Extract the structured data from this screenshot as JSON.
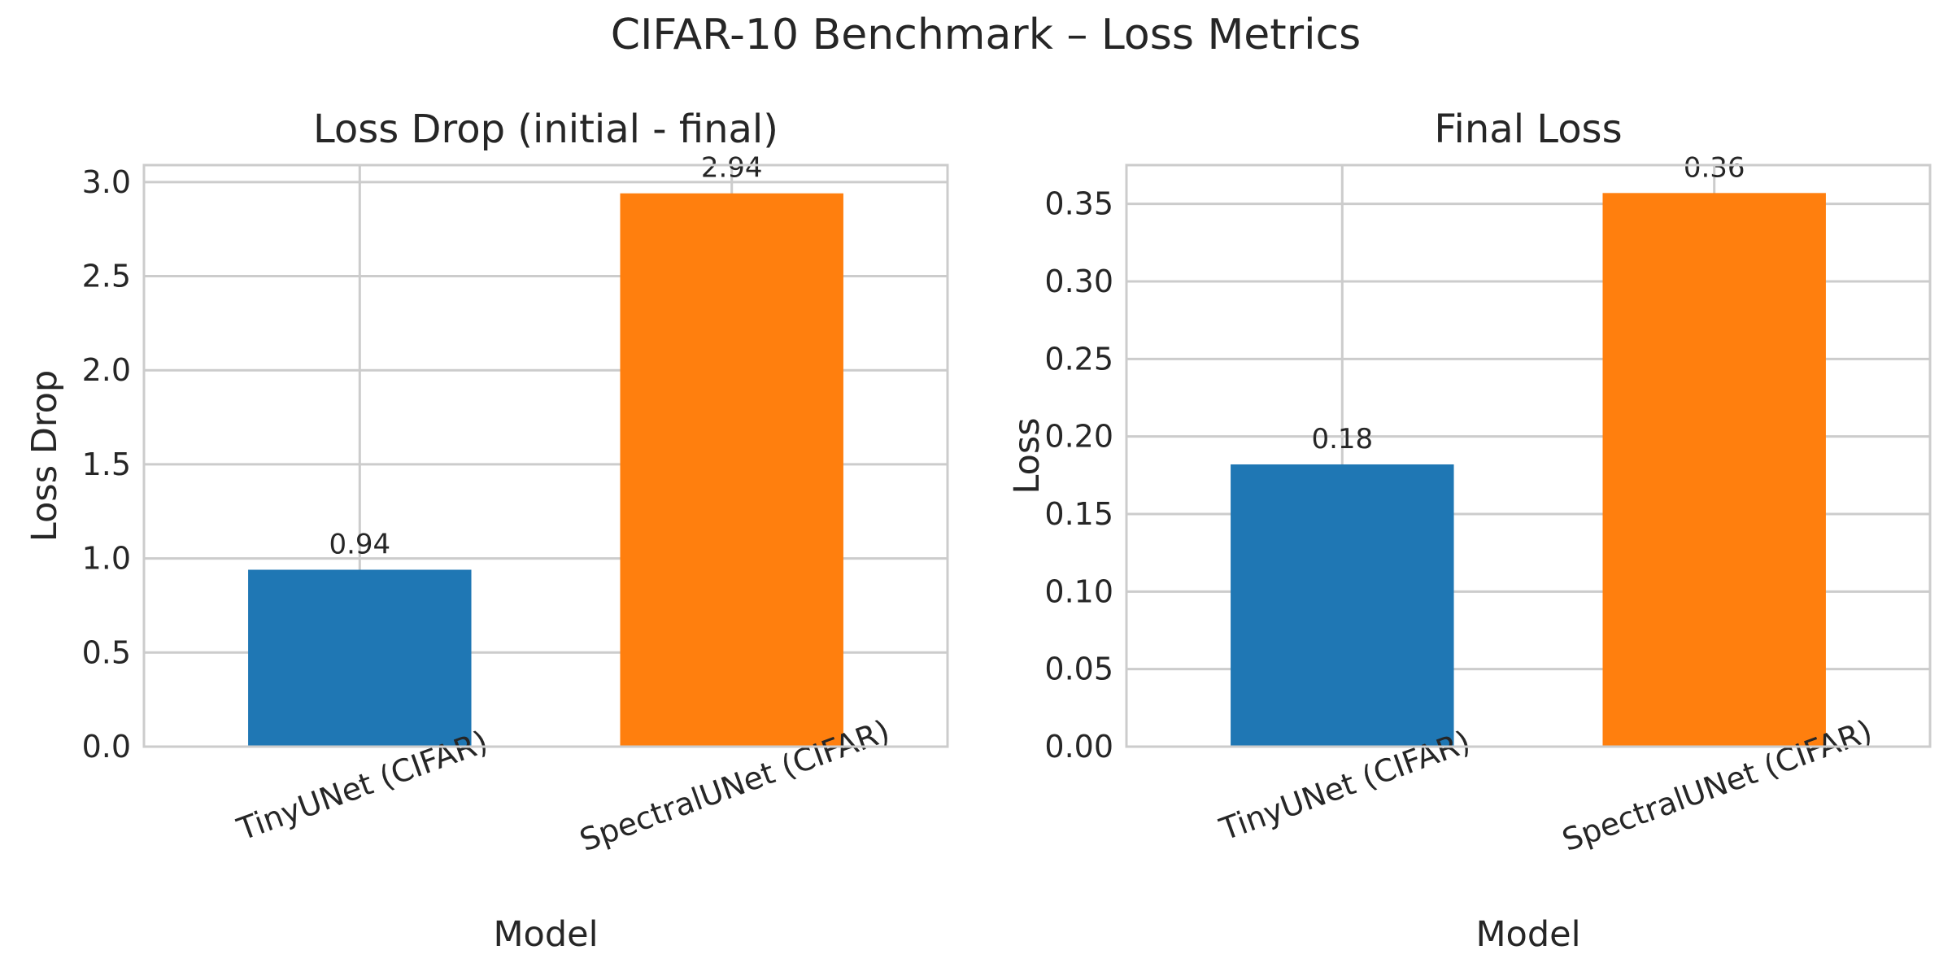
{
  "figure_title": "CIFAR-10 Benchmark – Loss Metrics",
  "chart_data": [
    {
      "type": "bar",
      "title": "Loss Drop (initial - final)",
      "xlabel": "Model",
      "ylabel": "Loss Drop",
      "categories": [
        "TinyUNet (CIFAR)",
        "SpectralUNet (CIFAR)"
      ],
      "values": [
        0.94,
        2.94
      ],
      "value_labels": [
        "0.94",
        "2.94"
      ],
      "colors": [
        "#1f77b4",
        "#ff7f0e"
      ],
      "ylim": [
        0,
        3.09
      ],
      "yticks": [
        0,
        0.5,
        1.0,
        1.5,
        2.0,
        2.5,
        3.0
      ],
      "ytick_labels": [
        "0.0",
        "0.5",
        "1.0",
        "1.5",
        "2.0",
        "2.5",
        "3.0"
      ],
      "grid": true
    },
    {
      "type": "bar",
      "title": "Final Loss",
      "xlabel": "Model",
      "ylabel": "Loss",
      "categories": [
        "TinyUNet (CIFAR)",
        "SpectralUNet (CIFAR)"
      ],
      "values": [
        0.182,
        0.357
      ],
      "value_labels": [
        "0.18",
        "0.36"
      ],
      "colors": [
        "#1f77b4",
        "#ff7f0e"
      ],
      "ylim": [
        0,
        0.375
      ],
      "yticks": [
        0,
        0.05,
        0.1,
        0.15,
        0.2,
        0.25,
        0.3,
        0.35
      ],
      "ytick_labels": [
        "0.00",
        "0.05",
        "0.10",
        "0.15",
        "0.20",
        "0.25",
        "0.30",
        "0.35"
      ],
      "grid": true
    }
  ]
}
